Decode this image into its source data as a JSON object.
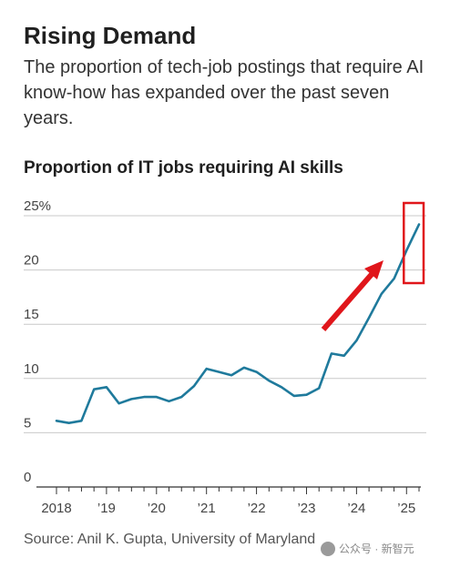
{
  "header": {
    "title": "Rising Demand",
    "subtitle": "The proportion of tech-job postings that require AI know-how has expanded over the past seven years."
  },
  "chart_data": {
    "type": "line",
    "title": "Proportion of IT jobs requiring AI skills",
    "xlabel": "",
    "ylabel": "",
    "ylim": [
      0,
      25
    ],
    "xlim": [
      2018.0,
      2025.25
    ],
    "yticks": [
      {
        "value": 0,
        "label": "0"
      },
      {
        "value": 5,
        "label": "5"
      },
      {
        "value": 10,
        "label": "10"
      },
      {
        "value": 15,
        "label": "15"
      },
      {
        "value": 20,
        "label": "20"
      },
      {
        "value": 25,
        "label": "25%"
      }
    ],
    "xticks": [
      {
        "value": 2018,
        "label": "2018"
      },
      {
        "value": 2019,
        "label": "’19"
      },
      {
        "value": 2020,
        "label": "’20"
      },
      {
        "value": 2021,
        "label": "’21"
      },
      {
        "value": 2022,
        "label": "’22"
      },
      {
        "value": 2023,
        "label": "’23"
      },
      {
        "value": 2024,
        "label": "’24"
      },
      {
        "value": 2025,
        "label": "’25"
      }
    ],
    "grid": true,
    "line_color": "#1f7a9c",
    "series": [
      {
        "x": [
          2018.0,
          2018.25,
          2018.5,
          2018.75,
          2019.0,
          2019.25,
          2019.5,
          2019.75,
          2020.0,
          2020.25,
          2020.5,
          2020.75,
          2021.0,
          2021.25,
          2021.5,
          2021.75,
          2022.0,
          2022.25,
          2022.5,
          2022.75,
          2023.0,
          2023.25,
          2023.5,
          2023.75,
          2024.0,
          2024.25,
          2024.5,
          2024.75,
          2025.0,
          2025.25
        ],
        "values": [
          6.1,
          5.9,
          6.1,
          9.0,
          9.2,
          7.7,
          8.1,
          8.3,
          8.3,
          7.9,
          8.3,
          9.3,
          10.9,
          10.6,
          10.3,
          11.0,
          10.6,
          9.8,
          9.2,
          8.4,
          8.5,
          9.1,
          12.3,
          12.1,
          13.5,
          15.6,
          17.8,
          19.2,
          21.8,
          24.2
        ]
      }
    ],
    "annotation": {
      "type": "arrow-and-box",
      "color": "#e0161b",
      "highlight_x": [
        2025.0,
        2025.25
      ]
    }
  },
  "footer": {
    "source": "Source: Anil K. Gupta, University of Maryland",
    "watermark": "公众号 · 新智元"
  }
}
